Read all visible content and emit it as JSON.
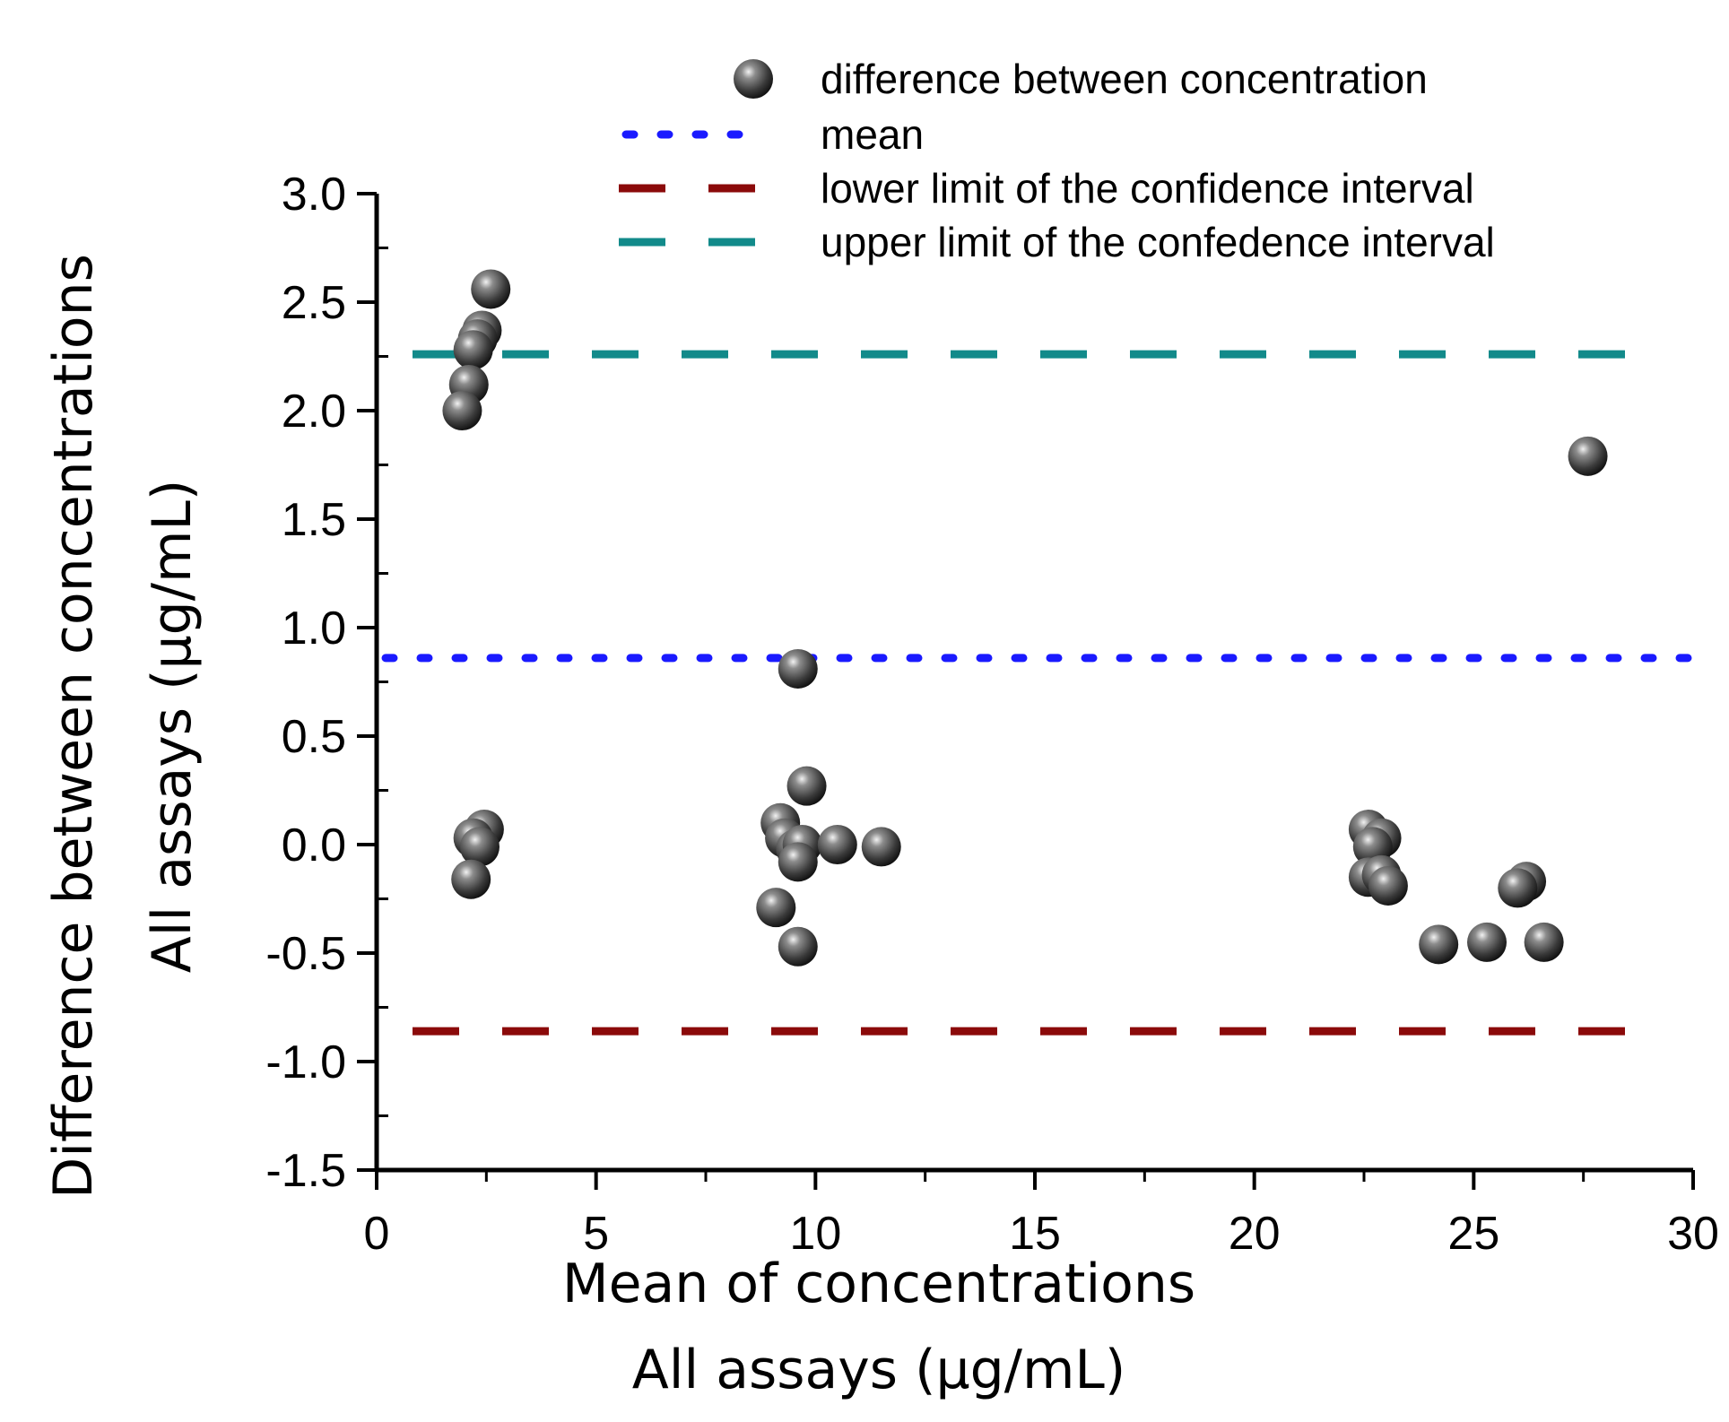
{
  "chart_data": {
    "type": "scatter",
    "title": "",
    "xlabel": [
      "Mean of concentrations",
      "All assays (µg/mL)"
    ],
    "ylabel": [
      "Difference between concentrations",
      "All assays (µg/mL)"
    ],
    "xlim": [
      0,
      30
    ],
    "ylim": [
      -1.5,
      3.0
    ],
    "x_ticks": [
      "0",
      "5",
      "10",
      "15",
      "20",
      "25",
      "30"
    ],
    "y_ticks": [
      "-1.5",
      "-1.0",
      "-0.5",
      "0.0",
      "0.5",
      "1.0",
      "1.5",
      "2.0",
      "2.5",
      "3.0"
    ],
    "legend_position": "top",
    "legend": [
      {
        "label": "difference between concentration",
        "style": "marker"
      },
      {
        "label": "mean",
        "style": "dotted",
        "color": "#1a1aff"
      },
      {
        "label": "lower limit of the confidence interval",
        "style": "dashed",
        "color": "#8b0a0a"
      },
      {
        "label": "upper limit of the confedence interval",
        "style": "dashed",
        "color": "#128a8a"
      }
    ],
    "reference_lines": {
      "mean": 0.86,
      "lower_limit": -0.86,
      "upper_limit": 2.26
    },
    "points": [
      {
        "x": 2.6,
        "y": 2.56
      },
      {
        "x": 2.4,
        "y": 2.37
      },
      {
        "x": 2.3,
        "y": 2.33
      },
      {
        "x": 2.2,
        "y": 2.28
      },
      {
        "x": 2.1,
        "y": 2.12
      },
      {
        "x": 1.95,
        "y": 2.0
      },
      {
        "x": 27.6,
        "y": 1.79
      },
      {
        "x": 9.6,
        "y": 0.81
      },
      {
        "x": 9.8,
        "y": 0.27
      },
      {
        "x": 2.45,
        "y": 0.07
      },
      {
        "x": 2.2,
        "y": 0.03
      },
      {
        "x": 2.35,
        "y": -0.01
      },
      {
        "x": 2.15,
        "y": -0.16
      },
      {
        "x": 9.2,
        "y": 0.1
      },
      {
        "x": 9.3,
        "y": 0.03
      },
      {
        "x": 9.55,
        "y": -0.02
      },
      {
        "x": 9.7,
        "y": 0.0
      },
      {
        "x": 9.6,
        "y": -0.08
      },
      {
        "x": 10.5,
        "y": 0.0
      },
      {
        "x": 11.5,
        "y": -0.01
      },
      {
        "x": 9.1,
        "y": -0.29
      },
      {
        "x": 9.6,
        "y": -0.47
      },
      {
        "x": 22.6,
        "y": 0.07
      },
      {
        "x": 22.9,
        "y": 0.03
      },
      {
        "x": 22.7,
        "y": -0.01
      },
      {
        "x": 22.6,
        "y": -0.15
      },
      {
        "x": 22.9,
        "y": -0.14
      },
      {
        "x": 23.05,
        "y": -0.19
      },
      {
        "x": 26.2,
        "y": -0.17
      },
      {
        "x": 26.0,
        "y": -0.2
      },
      {
        "x": 24.2,
        "y": -0.46
      },
      {
        "x": 25.3,
        "y": -0.45
      },
      {
        "x": 26.6,
        "y": -0.45
      }
    ]
  }
}
